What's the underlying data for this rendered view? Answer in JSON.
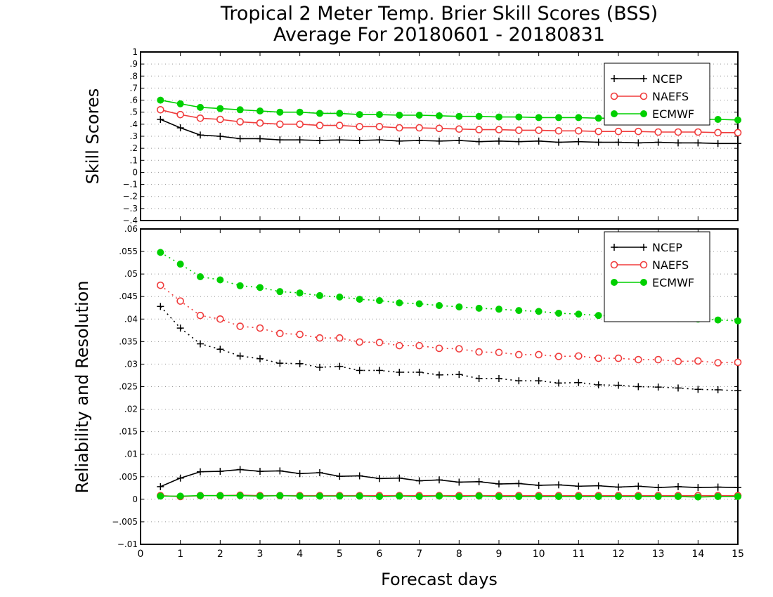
{
  "chart_data": [
    {
      "type": "line",
      "panel": "top",
      "title": "Tropical 2 Meter Temp. Brier Skill Scores (BSS)",
      "subtitle": "Average For 20180601 - 20180831",
      "ylabel": "Skill Scores",
      "xlabel": "",
      "xlim": [
        0,
        15
      ],
      "ylim": [
        -0.4,
        1
      ],
      "yticks": [
        -0.4,
        -0.3,
        -0.2,
        -0.1,
        0,
        0.1,
        0.2,
        0.3,
        0.4,
        0.5,
        0.6,
        0.7,
        0.8,
        0.9,
        1
      ],
      "grid": "horizontal-dotted",
      "legend_position": "top-right",
      "x": [
        0.5,
        1,
        1.5,
        2,
        2.5,
        3,
        3.5,
        4,
        4.5,
        5,
        5.5,
        6,
        6.5,
        7,
        7.5,
        8,
        8.5,
        9,
        9.5,
        10,
        10.5,
        11,
        11.5,
        12,
        12.5,
        13,
        13.5,
        14,
        14.5,
        15
      ],
      "series": [
        {
          "name": "NCEP",
          "color": "#000000",
          "marker": "plus",
          "line": "solid",
          "values": [
            0.44,
            0.37,
            0.31,
            0.3,
            0.28,
            0.28,
            0.27,
            0.27,
            0.265,
            0.27,
            0.265,
            0.27,
            0.26,
            0.265,
            0.26,
            0.265,
            0.255,
            0.26,
            0.255,
            0.26,
            0.25,
            0.255,
            0.25,
            0.25,
            0.245,
            0.25,
            0.245,
            0.245,
            0.24,
            0.24
          ]
        },
        {
          "name": "NAEFS",
          "color": "#f03c3c",
          "marker": "open-circle",
          "line": "solid",
          "values": [
            0.52,
            0.48,
            0.45,
            0.44,
            0.42,
            0.41,
            0.4,
            0.4,
            0.39,
            0.39,
            0.38,
            0.38,
            0.37,
            0.37,
            0.365,
            0.36,
            0.355,
            0.355,
            0.35,
            0.35,
            0.345,
            0.345,
            0.34,
            0.34,
            0.34,
            0.335,
            0.335,
            0.335,
            0.33,
            0.33
          ]
        },
        {
          "name": "ECMWF",
          "color": "#00d000",
          "marker": "filled-circle",
          "line": "solid",
          "values": [
            0.6,
            0.57,
            0.54,
            0.53,
            0.52,
            0.51,
            0.5,
            0.5,
            0.49,
            0.49,
            0.48,
            0.48,
            0.475,
            0.475,
            0.47,
            0.465,
            0.465,
            0.46,
            0.46,
            0.455,
            0.455,
            0.455,
            0.45,
            0.45,
            0.445,
            0.445,
            0.445,
            0.44,
            0.44,
            0.435
          ]
        }
      ]
    },
    {
      "type": "line",
      "panel": "bottom",
      "ylabel": "Reliability and Resolution",
      "xlabel": "Forecast days",
      "xlim": [
        0,
        15
      ],
      "ylim": [
        -0.01,
        0.06
      ],
      "xticks": [
        0,
        1,
        2,
        3,
        4,
        5,
        6,
        7,
        8,
        9,
        10,
        11,
        12,
        13,
        14,
        15
      ],
      "yticks": [
        -0.01,
        -0.005,
        0,
        0.005,
        0.01,
        0.015,
        0.02,
        0.025,
        0.03,
        0.035,
        0.04,
        0.045,
        0.05,
        0.055,
        0.06
      ],
      "grid": "horizontal-dotted",
      "legend_position": "top-right",
      "x": [
        0.5,
        1,
        1.5,
        2,
        2.5,
        3,
        3.5,
        4,
        4.5,
        5,
        5.5,
        6,
        6.5,
        7,
        7.5,
        8,
        8.5,
        9,
        9.5,
        10,
        10.5,
        11,
        11.5,
        12,
        12.5,
        13,
        13.5,
        14,
        14.5,
        15
      ],
      "series": [
        {
          "name": "NCEP",
          "color": "#000000",
          "marker": "plus",
          "line": "dotted",
          "values": [
            0.0428,
            0.038,
            0.0345,
            0.0333,
            0.0318,
            0.0312,
            0.0302,
            0.0301,
            0.0293,
            0.0295,
            0.0286,
            0.0286,
            0.0282,
            0.0282,
            0.0276,
            0.0277,
            0.0268,
            0.0268,
            0.0263,
            0.0263,
            0.0258,
            0.0259,
            0.0254,
            0.0253,
            0.025,
            0.0249,
            0.0247,
            0.0244,
            0.0243,
            0.0241
          ]
        },
        {
          "name": "NAEFS",
          "color": "#f03c3c",
          "marker": "open-circle",
          "line": "dotted",
          "values": [
            0.0475,
            0.044,
            0.0408,
            0.04,
            0.0384,
            0.038,
            0.0368,
            0.0366,
            0.0358,
            0.0358,
            0.0349,
            0.0348,
            0.0341,
            0.0341,
            0.0335,
            0.0334,
            0.0327,
            0.0326,
            0.0321,
            0.0321,
            0.0317,
            0.0318,
            0.0313,
            0.0313,
            0.031,
            0.031,
            0.0306,
            0.0307,
            0.0303,
            0.0304
          ]
        },
        {
          "name": "ECMWF",
          "color": "#00d000",
          "marker": "filled-circle",
          "line": "dotted",
          "values": [
            0.0548,
            0.0522,
            0.0494,
            0.0487,
            0.0474,
            0.047,
            0.0461,
            0.0458,
            0.0452,
            0.0449,
            0.0444,
            0.0441,
            0.0436,
            0.0434,
            0.043,
            0.0427,
            0.0424,
            0.0422,
            0.0419,
            0.0417,
            0.0413,
            0.0411,
            0.0408,
            0.0406,
            0.0404,
            0.0403,
            0.0401,
            0.04,
            0.0398,
            0.0396
          ]
        },
        {
          "name": "NCEP",
          "color": "#000000",
          "marker": "plus",
          "line": "solid",
          "legend": false,
          "values": [
            0.0028,
            0.0047,
            0.0061,
            0.0062,
            0.0066,
            0.0062,
            0.0063,
            0.0057,
            0.0059,
            0.0051,
            0.0052,
            0.0046,
            0.0047,
            0.0041,
            0.0043,
            0.0038,
            0.0039,
            0.0034,
            0.0035,
            0.0031,
            0.0032,
            0.0029,
            0.003,
            0.0027,
            0.0029,
            0.0026,
            0.0028,
            0.0026,
            0.0027,
            0.0026
          ]
        },
        {
          "name": "NAEFS",
          "color": "#f03c3c",
          "marker": "open-circle",
          "line": "solid",
          "legend": false,
          "values": [
            0.0008,
            0.0006,
            0.0008,
            0.0008,
            0.0009,
            0.0008,
            0.0008,
            0.0008,
            0.0008,
            0.0008,
            0.0008,
            0.0008,
            0.0008,
            0.0008,
            0.0008,
            0.0008,
            0.0008,
            0.0008,
            0.0008,
            0.0008,
            0.0008,
            0.0008,
            0.0008,
            0.0008,
            0.0008,
            0.0008,
            0.0008,
            0.0008,
            0.0008,
            0.0008
          ]
        },
        {
          "name": "ECMWF",
          "color": "#00d000",
          "marker": "filled-circle",
          "line": "solid",
          "legend": false,
          "values": [
            0.0007,
            0.0007,
            0.0008,
            0.0008,
            0.0008,
            0.0007,
            0.0008,
            0.0007,
            0.0007,
            0.0007,
            0.0007,
            0.0006,
            0.0007,
            0.0006,
            0.0007,
            0.0006,
            0.0007,
            0.0006,
            0.0006,
            0.0006,
            0.0006,
            0.0006,
            0.0006,
            0.0006,
            0.0006,
            0.0006,
            0.0006,
            0.0005,
            0.0006,
            0.0006
          ]
        }
      ]
    }
  ]
}
